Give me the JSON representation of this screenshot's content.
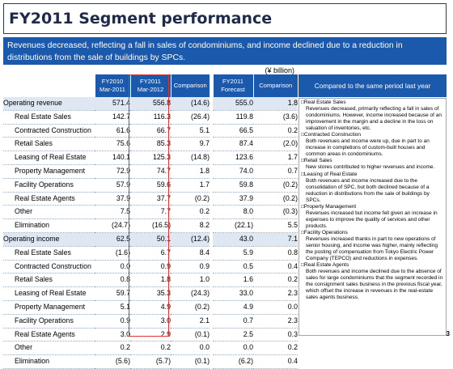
{
  "title": "FY2011 Segment performance",
  "banner": "Revenues decreased, reflecting a fall in sales of condominiums, and income declined due to a reduction in distributions from the sale of buildings by SPCs.",
  "unit": "(¥ billion)",
  "columns": {
    "fy2010": "FY2010\nMar-2011",
    "fy2011": "FY2011\nMar-2012",
    "comparison1": "Comparison",
    "forecast": "FY2011\nForecast",
    "comparison2": "Comparison",
    "remarks": "Compared to the same period last year"
  },
  "operating_revenue": {
    "label": "Operating revenue",
    "values": [
      "571.4",
      "556.8",
      "(14.6)",
      "555.0",
      "1.8"
    ],
    "rows": [
      {
        "label": "Real Estate Sales",
        "values": [
          "142.7",
          "116.3",
          "(26.4)",
          "119.8",
          "(3.6)"
        ]
      },
      {
        "label": "Contracted Construction",
        "values": [
          "61.6",
          "66.7",
          "5.1",
          "66.5",
          "0.2"
        ]
      },
      {
        "label": "Retail Sales",
        "values": [
          "75.6",
          "85.3",
          "9.7",
          "87.4",
          "(2.0)"
        ]
      },
      {
        "label": "Leasing of Real Estate",
        "values": [
          "140.1",
          "125.3",
          "(14.8)",
          "123.6",
          "1.7"
        ]
      },
      {
        "label": "Property Management",
        "values": [
          "72.9",
          "74.7",
          "1.8",
          "74.0",
          "0.7"
        ]
      },
      {
        "label": "Facility Operations",
        "values": [
          "57.9",
          "59.6",
          "1.7",
          "59.8",
          "(0.2)"
        ]
      },
      {
        "label": "Real Estate Agents",
        "values": [
          "37.9",
          "37.7",
          "(0.2)",
          "37.9",
          "(0.2)"
        ]
      },
      {
        "label": "Other",
        "values": [
          "7.5",
          "7.7",
          "0.2",
          "8.0",
          "(0.3)"
        ]
      },
      {
        "label": "Elimination",
        "values": [
          "(24.7)",
          "(16.5)",
          "8.2",
          "(22.1)",
          "5.5"
        ]
      }
    ]
  },
  "operating_income": {
    "label": "Operating income",
    "values": [
      "62.5",
      "50.1",
      "(12.4)",
      "43.0",
      "7.1"
    ],
    "rows": [
      {
        "label": "Real Estate Sales",
        "values": [
          "(1.6)",
          "6.7",
          "8.4",
          "5.9",
          "0.8"
        ]
      },
      {
        "label": "Contracted Construction",
        "values": [
          "0.0",
          "0.9",
          "0.9",
          "0.5",
          "0.4"
        ]
      },
      {
        "label": "Retail Sales",
        "values": [
          "0.8",
          "1.8",
          "1.0",
          "1.6",
          "0.2"
        ]
      },
      {
        "label": "Leasing of Real Estate",
        "values": [
          "59.7",
          "35.3",
          "(24.3)",
          "33.0",
          "2.3"
        ]
      },
      {
        "label": "Property Management",
        "values": [
          "5.1",
          "4.9",
          "(0.2)",
          "4.9",
          "0.0"
        ]
      },
      {
        "label": "Facility Operations",
        "values": [
          "0.9",
          "3.0",
          "2.1",
          "0.7",
          "2.3"
        ]
      },
      {
        "label": "Real Estate Agents",
        "values": [
          "3.0",
          "2.9",
          "(0.1)",
          "2.5",
          "0.3"
        ]
      },
      {
        "label": "Other",
        "values": [
          "0.2",
          "0.2",
          "0.0",
          "0.0",
          "0.2"
        ]
      },
      {
        "label": "Elimination",
        "values": [
          "(5.6)",
          "(5.7)",
          "(0.1)",
          "(6.2)",
          "0.4"
        ]
      }
    ]
  },
  "remarks": [
    {
      "heading": "□Real Estate Sales",
      "text": "Revenues decreased, primarily reflecting a fall in sales of condominiums. However, income increased because of an improvement in the margin and a decline in the loss on valuation of inventories, etc."
    },
    {
      "heading": "□Contracted Construction",
      "text": "Both revenues and income were up, due in part to an increase in completions of custom-built houses and common areas in condominiums."
    },
    {
      "heading": "□Retail Sales",
      "text": "New stores contributed to higher revenues and income."
    },
    {
      "heading": "□Leasing of Real Estate",
      "text": "Both revenues and income increased due to the consolidation of SPC, but both declined because of a reduction in distributions from the sale of buildings by SPCs."
    },
    {
      "heading": "□Property Management",
      "text": "Revenues increased but income fell given an increase in expenses to improve the quality of services and other products."
    },
    {
      "heading": "□Facility Operations",
      "text": "Revenues increased thanks in part to new operations of senior housing, and income was higher, mainly reflecting the posting of compensation from Tokyo Electric Power Company (TEPCO) and reductions in expenses."
    },
    {
      "heading": "□Real Estate Agents",
      "text": "Both revenues and income declined due to the absence of sales for large condominiums that the segment recorded in the consignment sales business in the previous fiscal year, which offset the increase in revenues in the real-estate sales agents business."
    }
  ],
  "page_number": "3",
  "colors": {
    "accent": "#1b59ad",
    "section_bg": "#dfe7f3",
    "highlight": "#e03030"
  }
}
